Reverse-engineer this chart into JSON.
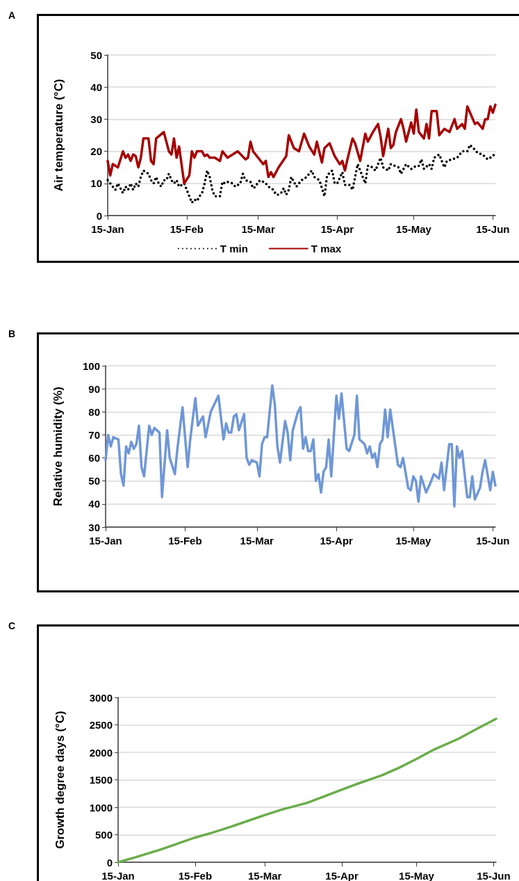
{
  "chart_data": [
    {
      "type": "line",
      "annotations": [
        "A"
      ],
      "ylabel": "Air temperature (°C)",
      "xlim": [
        "--01-15",
        "--06-16"
      ],
      "xticks": [
        {
          "value": "--01-15",
          "label": "15-Jan"
        },
        {
          "value": "--02-15",
          "label": "15-Feb"
        },
        {
          "value": "--03-15",
          "label": "15-Mar"
        },
        {
          "value": "--04-15",
          "label": "15-Apr"
        },
        {
          "value": "--05-15",
          "label": "15-May"
        },
        {
          "value": "--06-15",
          "label": "15-Jun"
        }
      ],
      "ylim": [
        0,
        50
      ],
      "yticks": [
        0,
        10,
        20,
        30,
        40,
        50
      ],
      "grid": "y",
      "legend": "bottom",
      "series": [
        {
          "name": "T min",
          "color": "#000000",
          "line_style": "dotted",
          "x": [
            "--01-15",
            "--01-18",
            "--01-19",
            "--01-21",
            "--01-22",
            "--01-23",
            "--01-24",
            "--01-25",
            "--01-26",
            "--01-27",
            "--01-28",
            "--01-29",
            "--01-31",
            "--02-01",
            "--02-02",
            "--02-03",
            "--02-04",
            "--02-05",
            "--02-06",
            "--02-07",
            "--02-08",
            "--02-09",
            "--02-10",
            "--02-11",
            "--02-12",
            "--02-14",
            "--02-15",
            "--02-16",
            "--02-17",
            "--02-18",
            "--02-19",
            "--02-20",
            "--02-21",
            "--02-22",
            "--02-23",
            "--02-24",
            "--02-25",
            "--02-26",
            "--02-28",
            "--03-01",
            "--03-02",
            "--03-03",
            "--03-05",
            "--03-06",
            "--03-08",
            "--03-09",
            "--03-10",
            "--03-12",
            "--03-13",
            "--03-14",
            "--03-15",
            "--03-16",
            "--03-18",
            "--03-19",
            "--03-21",
            "--03-22",
            "--03-23",
            "--03-24",
            "--03-25",
            "--03-26",
            "--03-27",
            "--03-28",
            "--03-30",
            "--04-01",
            "--04-03",
            "--04-05",
            "--04-06",
            "--04-08",
            "--04-10",
            "--04-11",
            "--04-13",
            "--04-14",
            "--04-15",
            "--04-17",
            "--04-18",
            "--04-20",
            "--04-21",
            "--04-23",
            "--04-24",
            "--04-26",
            "--04-27",
            "--04-28",
            "--04-30",
            "--05-02",
            "--05-03",
            "--05-05",
            "--05-06",
            "--05-09",
            "--05-10",
            "--05-12",
            "--05-14",
            "--05-16",
            "--05-17",
            "--05-18",
            "--05-19",
            "--05-21",
            "--05-22",
            "--05-23",
            "--05-25",
            "--05-27",
            "--05-28",
            "--06-01",
            "--06-03",
            "--06-05",
            "--06-06",
            "--06-08",
            "--06-09",
            "--06-11",
            "--06-13",
            "--06-15",
            "--06-16"
          ],
          "values": [
            11,
            8,
            10,
            7,
            9,
            8,
            10,
            8,
            10,
            9,
            12,
            14,
            13,
            11,
            10,
            12,
            10,
            9,
            11,
            11,
            13,
            11,
            10,
            11,
            9,
            10,
            8,
            6,
            4,
            5,
            4.5,
            6,
            7,
            10,
            14,
            12,
            8,
            6,
            6,
            10.5,
            10,
            10.5,
            10,
            9,
            10,
            13,
            11,
            10.5,
            8.5,
            9,
            10.5,
            11,
            10,
            9,
            8,
            6.5,
            6.5,
            7,
            8.5,
            6.5,
            8,
            12,
            9,
            11,
            12,
            14,
            12,
            11,
            6,
            12.5,
            14,
            10,
            10,
            13.5,
            9.5,
            9.5,
            8,
            16,
            14,
            10,
            15.5,
            15.5,
            14,
            18,
            15,
            14,
            16,
            15,
            13,
            16,
            14.5,
            15.5,
            15.5,
            17.5,
            14.5,
            16,
            14.5,
            18,
            19,
            15,
            17,
            18,
            20,
            20,
            22,
            20.5,
            19.5,
            19,
            17.5,
            18.5,
            19.5
          ]
        },
        {
          "name": "T max",
          "color": "#a50000",
          "line_style": "solid",
          "x": [
            "--01-15",
            "--01-16",
            "--01-17",
            "--01-19",
            "--01-21",
            "--01-22",
            "--01-23",
            "--01-24",
            "--01-25",
            "--01-26",
            "--01-27",
            "--01-28",
            "--01-29",
            "--01-31",
            "--02-01",
            "--02-02",
            "--02-03",
            "--02-06",
            "--02-08",
            "--02-09",
            "--02-10",
            "--02-11",
            "--02-12",
            "--02-14",
            "--02-16",
            "--02-17",
            "--02-18",
            "--02-19",
            "--02-21",
            "--02-22",
            "--02-23",
            "--02-24",
            "--02-26",
            "--02-28",
            "--03-01",
            "--03-03",
            "--03-07",
            "--03-10",
            "--03-11",
            "--03-12",
            "--03-13",
            "--03-14",
            "--03-17",
            "--03-18",
            "--03-19",
            "--03-20",
            "--03-21",
            "--03-23",
            "--03-26",
            "--03-27",
            "--03-29",
            "--03-31",
            "--04-02",
            "--04-04",
            "--04-06",
            "--04-07",
            "--04-09",
            "--04-10",
            "--04-12",
            "--04-14",
            "--04-16",
            "--04-17",
            "--04-18",
            "--04-19",
            "--04-21",
            "--04-22",
            "--04-24",
            "--04-26",
            "--04-27",
            "--04-29",
            "--05-01",
            "--05-02",
            "--05-03",
            "--05-05",
            "--05-06",
            "--05-07",
            "--05-08",
            "--05-10",
            "--05-11",
            "--05-12",
            "--05-14",
            "--05-15",
            "--05-16",
            "--05-17",
            "--05-19",
            "--05-20",
            "--05-21",
            "--05-22",
            "--05-24",
            "--05-25",
            "--05-27",
            "--05-29",
            "--05-31",
            "--06-01",
            "--06-03",
            "--06-04",
            "--06-05",
            "--06-08",
            "--06-09",
            "--06-11",
            "--06-12",
            "--06-13",
            "--06-14",
            "--06-15",
            "--06-16"
          ],
          "values": [
            17,
            12.5,
            16,
            15,
            20,
            18,
            19,
            17,
            19,
            18.5,
            15,
            18,
            24,
            24,
            17,
            16,
            24,
            26,
            20,
            19,
            24,
            18,
            21.5,
            10,
            12.5,
            20,
            18,
            20,
            20,
            18.5,
            19,
            18,
            18,
            17,
            20,
            18,
            20,
            17.5,
            18,
            23,
            20,
            19,
            16,
            17,
            12,
            13.5,
            12,
            15,
            18.5,
            25,
            21,
            20,
            25.5,
            21.5,
            19,
            23,
            16.5,
            21,
            22.5,
            18.5,
            16,
            17,
            14,
            17.5,
            24,
            22.5,
            17,
            25.5,
            23,
            26,
            28.5,
            24.5,
            18.5,
            27,
            21,
            22,
            26,
            30,
            27,
            23,
            29,
            25.5,
            33,
            26,
            24,
            28.5,
            24,
            32.5,
            32.5,
            25,
            27,
            26,
            30,
            27,
            28.5,
            27,
            34,
            28.5,
            29,
            27,
            30,
            30,
            34,
            32,
            34.5
          ]
        }
      ]
    },
    {
      "type": "line",
      "annotations": [
        "B"
      ],
      "ylabel": "Relative humidity (%)",
      "xlim": [
        "--01-15",
        "--06-16"
      ],
      "xticks": [
        {
          "value": "--01-15",
          "label": "15-Jan"
        },
        {
          "value": "--02-15",
          "label": "15-Feb"
        },
        {
          "value": "--03-15",
          "label": "15-Mar"
        },
        {
          "value": "--04-15",
          "label": "15-Apr"
        },
        {
          "value": "--05-15",
          "label": "15-May"
        },
        {
          "value": "--06-15",
          "label": "15-Jun"
        }
      ],
      "ylim": [
        30,
        100
      ],
      "yticks": [
        30,
        40,
        50,
        60,
        70,
        80,
        90,
        100
      ],
      "grid": "y",
      "series": [
        {
          "color": "#6f97d6",
          "x": [
            "--01-15",
            "--01-16",
            "--01-17",
            "--01-18",
            "--01-20",
            "--01-21",
            "--01-22",
            "--01-23",
            "--01-24",
            "--01-25",
            "--01-26",
            "--01-27",
            "--01-28",
            "--01-29",
            "--01-30",
            "--02-01",
            "--02-02",
            "--02-03",
            "--02-05",
            "--02-06",
            "--02-08",
            "--02-09",
            "--02-11",
            "--02-12",
            "--02-14",
            "--02-16",
            "--02-17",
            "--02-19",
            "--02-20",
            "--02-22",
            "--02-23",
            "--02-25",
            "--02-28",
            "--03-02",
            "--03-03",
            "--03-04",
            "--03-05",
            "--03-06",
            "--03-07",
            "--03-08",
            "--03-10",
            "--03-11",
            "--03-12",
            "--03-13",
            "--03-15",
            "--03-16",
            "--03-17",
            "--03-18",
            "--03-19",
            "--03-21",
            "--03-22",
            "--03-23",
            "--03-24",
            "--03-26",
            "--03-27",
            "--03-28",
            "--03-29",
            "--03-31",
            "--04-01",
            "--04-02",
            "--04-03",
            "--04-04",
            "--04-05",
            "--04-06",
            "--04-07",
            "--04-08",
            "--04-09",
            "--04-10",
            "--04-11",
            "--04-12",
            "--04-13",
            "--04-15",
            "--04-16",
            "--04-17",
            "--04-19",
            "--04-20",
            "--04-22",
            "--04-23",
            "--04-24",
            "--04-26",
            "--04-27",
            "--04-28",
            "--04-29",
            "--04-30",
            "--05-01",
            "--05-02",
            "--05-03",
            "--05-04",
            "--05-05",
            "--05-06",
            "--05-07",
            "--05-09",
            "--05-10",
            "--05-11",
            "--05-13",
            "--05-14",
            "--05-15",
            "--05-16",
            "--05-17",
            "--05-18",
            "--05-20",
            "--05-22",
            "--05-23",
            "--05-25",
            "--05-26",
            "--05-27",
            "--05-29",
            "--05-30",
            "--05-31",
            "--06-01",
            "--06-02",
            "--06-03",
            "--06-05",
            "--06-06",
            "--06-07",
            "--06-08",
            "--06-10",
            "--06-11",
            "--06-12",
            "--06-14",
            "--06-15",
            "--06-16"
          ],
          "values": [
            59,
            70,
            65,
            69,
            68,
            53,
            48,
            65,
            62,
            67,
            64,
            66,
            74,
            56,
            52,
            74,
            70,
            73,
            71,
            43,
            72,
            60,
            53,
            64,
            82,
            56,
            68,
            86,
            74,
            78,
            69,
            80,
            87,
            68,
            75,
            71,
            71,
            78,
            79,
            72,
            79,
            60,
            57,
            59,
            58,
            52,
            66,
            69,
            69,
            91.5,
            83,
            65,
            58,
            76,
            71,
            59,
            72,
            80,
            82,
            64,
            69,
            63,
            63,
            68,
            50,
            53,
            45,
            54,
            56,
            68,
            52,
            87,
            77,
            88,
            64,
            63,
            70,
            87,
            68,
            66,
            62,
            65,
            60,
            62,
            56,
            66,
            68,
            81,
            69,
            81,
            73,
            57,
            56,
            60,
            47,
            46,
            52,
            50,
            41,
            52,
            45,
            50,
            53,
            51,
            58,
            46,
            66,
            66,
            39,
            65,
            60,
            63,
            43,
            43,
            52,
            42,
            47,
            54,
            59,
            46,
            54,
            48
          ]
        }
      ]
    },
    {
      "type": "line",
      "annotations": [
        "C"
      ],
      "ylabel": "Growth degree days (°C)",
      "xlim": [
        "--01-15",
        "--06-16"
      ],
      "xticks": [
        {
          "value": "--01-15",
          "label": "15-Jan"
        },
        {
          "value": "--02-15",
          "label": "15-Feb"
        },
        {
          "value": "--03-15",
          "label": "15-Mar"
        },
        {
          "value": "--04-15",
          "label": "15-Apr"
        },
        {
          "value": "--05-15",
          "label": "15-May"
        },
        {
          "value": "--06-15",
          "label": "15-Jun"
        }
      ],
      "ylim": [
        0,
        3000
      ],
      "yticks": [
        0,
        500,
        1000,
        1500,
        2000,
        2500,
        3000
      ],
      "grid": "y",
      "series": [
        {
          "color": "#6aad4a",
          "x": [
            "--01-15",
            "--01-22",
            "--02-01",
            "--02-08",
            "--02-15",
            "--02-22",
            "--03-01",
            "--03-08",
            "--03-15",
            "--03-22",
            "--04-01",
            "--04-08",
            "--04-15",
            "--04-22",
            "--05-01",
            "--05-08",
            "--05-15",
            "--05-22",
            "--06-01",
            "--06-08",
            "--06-16"
          ],
          "values": [
            0,
            90,
            230,
            340,
            450,
            540,
            640,
            750,
            860,
            960,
            1080,
            1200,
            1320,
            1440,
            1580,
            1720,
            1880,
            2050,
            2250,
            2420,
            2610
          ]
        }
      ]
    }
  ]
}
